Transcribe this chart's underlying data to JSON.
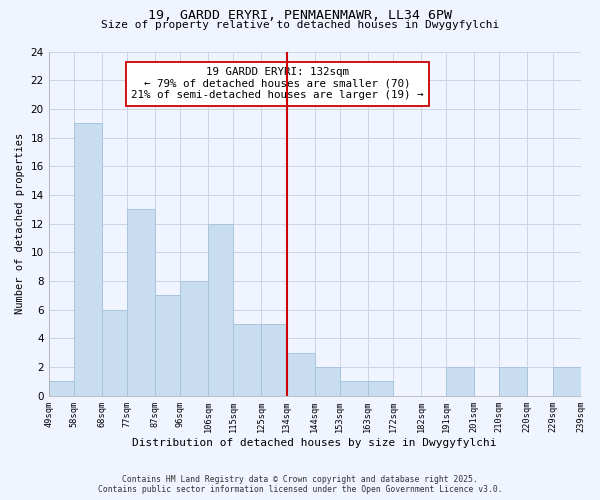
{
  "title_line1": "19, GARDD ERYRI, PENMAENMAWR, LL34 6PW",
  "title_line2": "Size of property relative to detached houses in Dwygyfylchi",
  "xlabel": "Distribution of detached houses by size in Dwygyfylchi",
  "ylabel": "Number of detached properties",
  "bins": [
    49,
    58,
    68,
    77,
    87,
    96,
    106,
    115,
    125,
    134,
    144,
    153,
    163,
    172,
    182,
    191,
    201,
    210,
    220,
    229,
    239
  ],
  "counts": [
    1,
    19,
    6,
    13,
    7,
    8,
    12,
    5,
    5,
    3,
    2,
    1,
    1,
    0,
    0,
    2,
    0,
    2,
    0,
    2
  ],
  "bar_color": "#c8ddf0",
  "bar_edge_color": "#a8c4dc",
  "vline_x": 134,
  "vline_color": "#cc0000",
  "ylim": [
    0,
    24
  ],
  "yticks": [
    0,
    2,
    4,
    6,
    8,
    10,
    12,
    14,
    16,
    18,
    20,
    22,
    24
  ],
  "annotation_text": "19 GARDD ERYRI: 132sqm\n← 79% of detached houses are smaller (70)\n21% of semi-detached houses are larger (19) →",
  "footer_line1": "Contains HM Land Registry data © Crown copyright and database right 2025.",
  "footer_line2": "Contains public sector information licensed under the Open Government Licence v3.0.",
  "bg_color": "#f0f4ff",
  "grid_color": "#ccd4e8",
  "tick_labels": [
    "49sqm",
    "58sqm",
    "68sqm",
    "77sqm",
    "87sqm",
    "96sqm",
    "106sqm",
    "115sqm",
    "125sqm",
    "134sqm",
    "144sqm",
    "153sqm",
    "163sqm",
    "172sqm",
    "182sqm",
    "191sqm",
    "201sqm",
    "210sqm",
    "220sqm",
    "229sqm",
    "239sqm"
  ]
}
